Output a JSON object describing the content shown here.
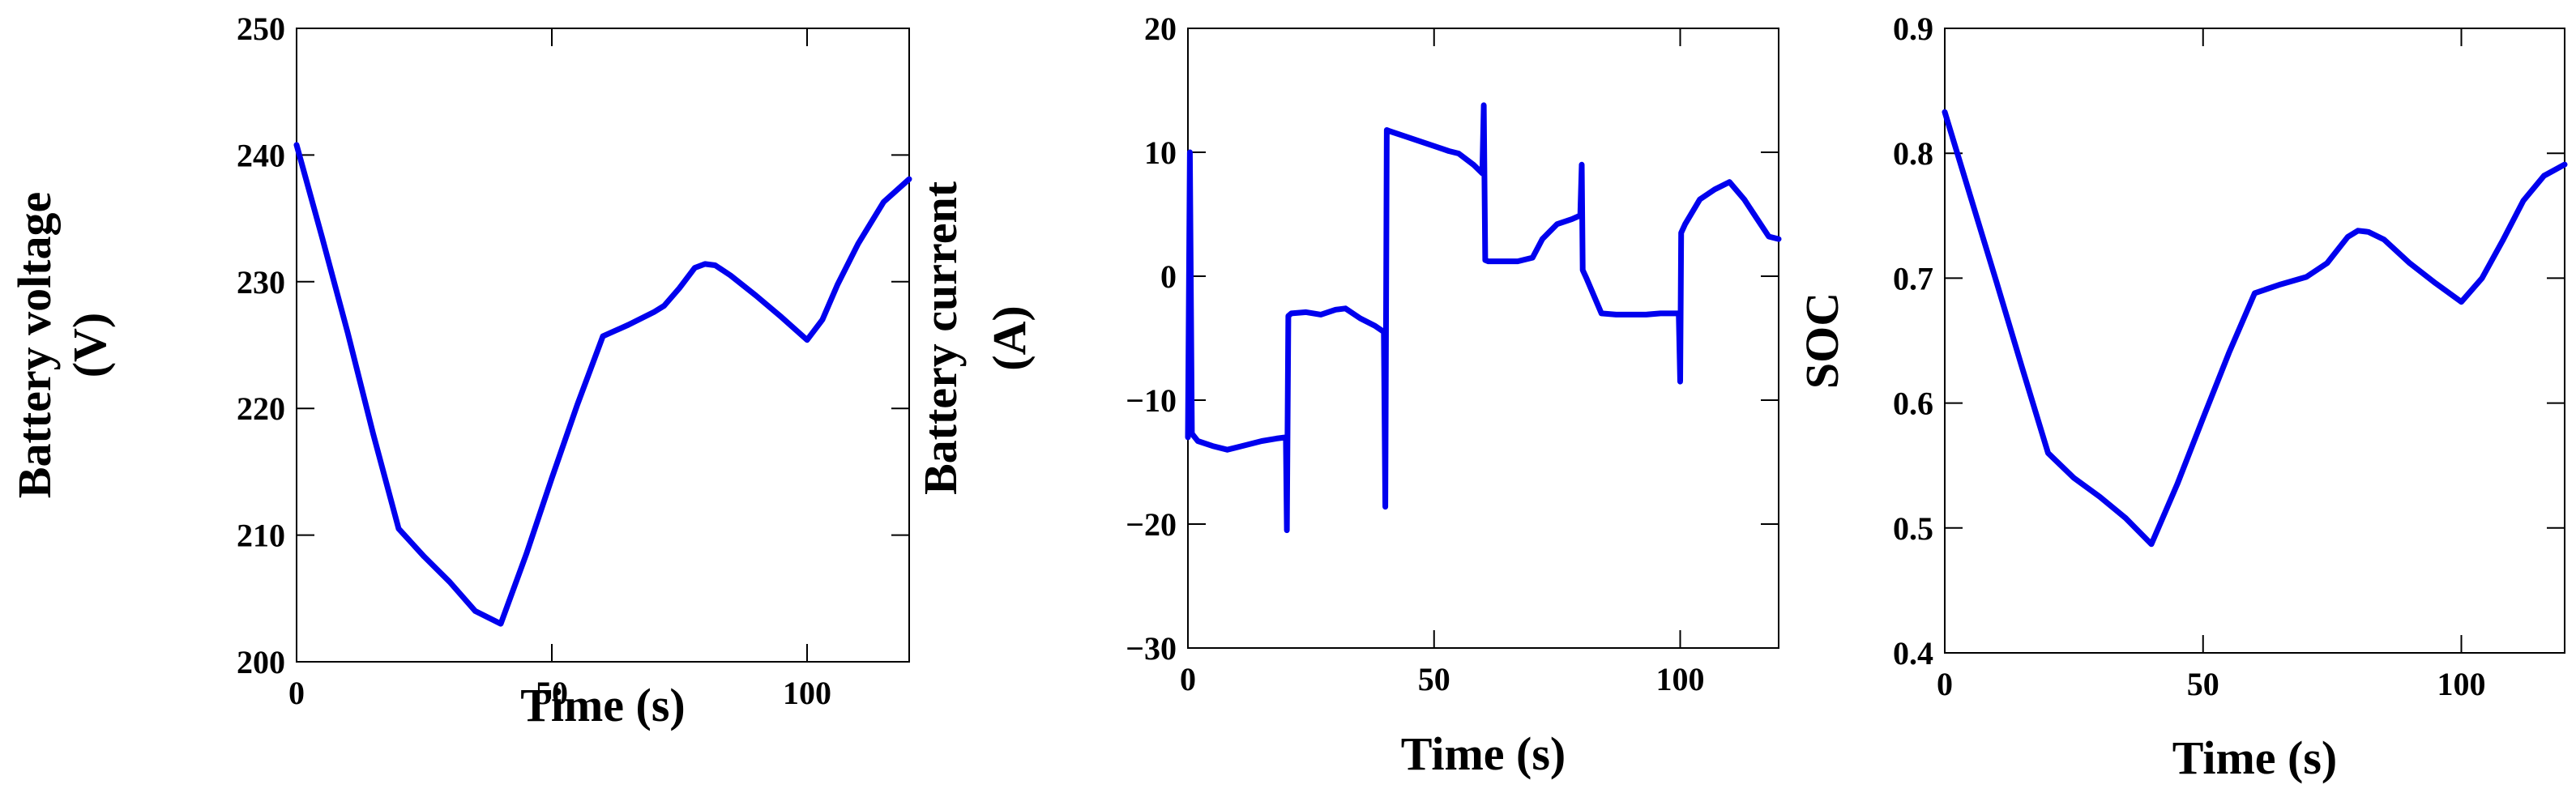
{
  "colors": {
    "series": "#0000ee",
    "axes": "#000000",
    "background": "#ffffff"
  },
  "chart_data": [
    {
      "type": "line",
      "title": "",
      "xlabel": "Time (s)",
      "ylabel_lines": [
        "Battery voltage",
        "(V)"
      ],
      "xlim": [
        0,
        120
      ],
      "ylim": [
        200,
        250
      ],
      "xticks": [
        0,
        50,
        100
      ],
      "yticks": [
        200,
        210,
        220,
        230,
        240,
        250
      ],
      "grid": false,
      "series": [
        {
          "x": [
            0,
            5,
            10,
            15,
            20,
            25,
            30,
            35,
            40,
            45,
            50,
            55,
            60,
            65,
            70,
            72,
            75,
            78,
            80,
            82,
            85,
            90,
            95,
            100,
            103,
            106,
            110,
            115,
            120
          ],
          "y": [
            240.8,
            233.5,
            226,
            218,
            210.5,
            208.3,
            206.3,
            204,
            203,
            208.5,
            214.5,
            220.3,
            225.7,
            226.6,
            227.6,
            228.1,
            229.5,
            231.1,
            231.4,
            231.3,
            230.5,
            228.9,
            227.2,
            225.4,
            227,
            229.8,
            233,
            236.3,
            238.1
          ]
        }
      ]
    },
    {
      "type": "line",
      "title": "",
      "xlabel": "Time (s)",
      "ylabel_lines": [
        "Battery current",
        "(A)"
      ],
      "xlim": [
        0,
        120
      ],
      "ylim": [
        -30,
        20
      ],
      "xticks": [
        0,
        50,
        100
      ],
      "yticks": [
        -30,
        -20,
        -10,
        0,
        10,
        20
      ],
      "grid": false,
      "series": [
        {
          "x": [
            0,
            0.4,
            0.8,
            2,
            5,
            8,
            12,
            15,
            18,
            19.9,
            20.1,
            20.4,
            21,
            24,
            27,
            30,
            32,
            35,
            38,
            39.8,
            40.1,
            40.4,
            41,
            44,
            47,
            50,
            53,
            55,
            58,
            59.8,
            60.1,
            60.4,
            61,
            64,
            67,
            70,
            72,
            75,
            78,
            79.7,
            80,
            80.2,
            81,
            84,
            87,
            90,
            93,
            96,
            99.7,
            100,
            100.2,
            101,
            104,
            107,
            110,
            113,
            116,
            118,
            120
          ],
          "y": [
            -13,
            10,
            -12.7,
            -13.3,
            -13.7,
            -14,
            -13.6,
            -13.3,
            -13.1,
            -13,
            -20.5,
            -3.2,
            -3,
            -2.9,
            -3.1,
            -2.7,
            -2.6,
            -3.4,
            -4,
            -4.5,
            -18.6,
            11.8,
            11.7,
            11.3,
            10.9,
            10.5,
            10.1,
            9.9,
            9,
            8.3,
            13.8,
            1.3,
            1.2,
            1.2,
            1.2,
            1.5,
            3,
            4.2,
            4.6,
            4.9,
            9,
            0.5,
            -0.2,
            -3,
            -3.1,
            -3.1,
            -3.1,
            -3,
            -3,
            -8.5,
            3.5,
            4.2,
            6.2,
            7,
            7.6,
            6.2,
            4.4,
            3.2,
            3
          ]
        }
      ]
    },
    {
      "type": "line",
      "title": "",
      "xlabel": "Time (s)",
      "ylabel_lines": [
        "SOC"
      ],
      "xlim": [
        0,
        120
      ],
      "ylim": [
        0.4,
        0.9
      ],
      "xticks": [
        0,
        50,
        100
      ],
      "yticks": [
        0.4,
        0.5,
        0.6,
        0.7,
        0.8,
        0.9
      ],
      "grid": false,
      "series": [
        {
          "x": [
            0,
            5,
            10,
            15,
            20,
            25,
            30,
            35,
            40,
            45,
            50,
            55,
            60,
            65,
            70,
            74,
            78,
            80,
            82,
            85,
            90,
            95,
            100,
            104,
            108,
            112,
            116,
            120
          ],
          "y": [
            0.833,
            0.765,
            0.697,
            0.628,
            0.56,
            0.54,
            0.525,
            0.508,
            0.487,
            0.535,
            0.588,
            0.64,
            0.688,
            0.695,
            0.701,
            0.712,
            0.733,
            0.738,
            0.737,
            0.731,
            0.712,
            0.696,
            0.681,
            0.7,
            0.73,
            0.762,
            0.782,
            0.791
          ]
        }
      ]
    }
  ]
}
